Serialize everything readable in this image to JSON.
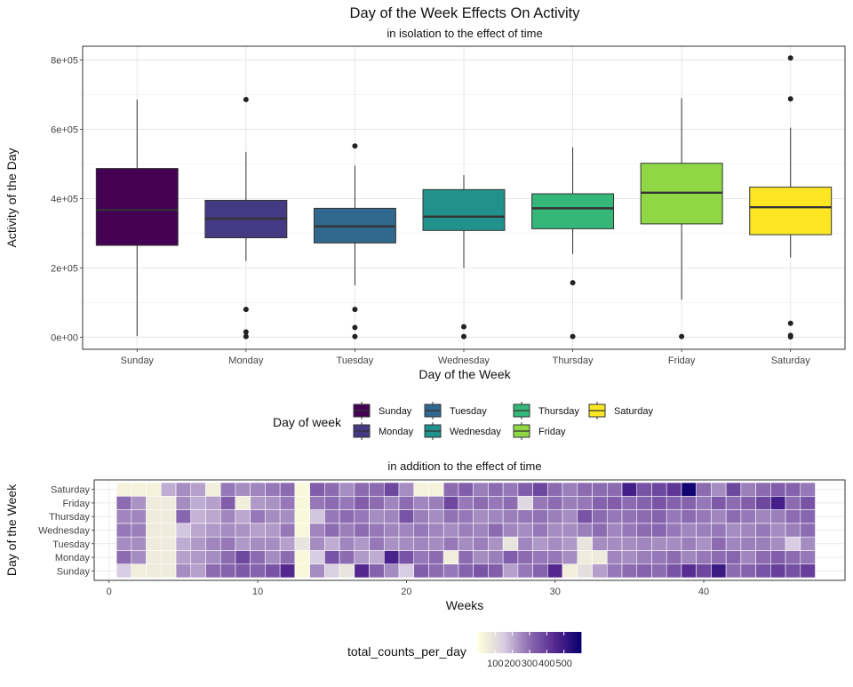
{
  "chart_data": [
    {
      "type": "box",
      "title": "Day of the Week Effects On Activity",
      "subtitle": "in isolation to the effect of time",
      "xlabel": "Day of the Week",
      "ylabel": "Activity of the Day",
      "ylim": [
        -35000,
        840000
      ],
      "yticks": [
        0,
        200000,
        400000,
        600000,
        800000
      ],
      "yticklabels": [
        "0e+00",
        "2e+05",
        "4e+05",
        "6e+05",
        "8e+05"
      ],
      "grid": true,
      "legend": {
        "title": "Day of week",
        "position": "bottom",
        "entries": [
          "Sunday",
          "Monday",
          "Tuesday",
          "Wednesday",
          "Thursday",
          "Friday",
          "Saturday"
        ]
      },
      "colors": [
        "#440154",
        "#443983",
        "#31688e",
        "#21918c",
        "#35b779",
        "#8fd744",
        "#fde725"
      ],
      "categories": [
        "Sunday",
        "Monday",
        "Tuesday",
        "Wednesday",
        "Thursday",
        "Friday",
        "Saturday"
      ],
      "boxes": [
        {
          "min": 3000,
          "q1": 265000,
          "median": 367000,
          "q3": 487000,
          "max": 686000,
          "outliers": []
        },
        {
          "min": 220000,
          "q1": 287000,
          "median": 342000,
          "q3": 395000,
          "max": 535000,
          "outliers": [
            686000,
            80000,
            15000,
            2000
          ]
        },
        {
          "min": 150000,
          "q1": 272000,
          "median": 320000,
          "q3": 372000,
          "max": 495000,
          "outliers": [
            552000,
            80000,
            28000,
            2000
          ]
        },
        {
          "min": 200000,
          "q1": 308000,
          "median": 348000,
          "q3": 426000,
          "max": 468000,
          "outliers": [
            30000,
            2000
          ]
        },
        {
          "min": 240000,
          "q1": 313000,
          "median": 372000,
          "q3": 414000,
          "max": 548000,
          "outliers": [
            157000,
            2000
          ]
        },
        {
          "min": 108000,
          "q1": 327000,
          "median": 417000,
          "q3": 502000,
          "max": 690000,
          "outliers": [
            2000
          ]
        },
        {
          "min": 230000,
          "q1": 296000,
          "median": 375000,
          "q3": 433000,
          "max": 605000,
          "outliers": [
            806000,
            688000,
            40000,
            5000,
            1000
          ]
        }
      ]
    },
    {
      "type": "heatmap",
      "title": "in addition to the effect of time",
      "xlabel": "Weeks",
      "ylabel": "Day of the Week",
      "xlim": [
        -1,
        49.5
      ],
      "xticks": [
        0,
        10,
        20,
        30,
        40
      ],
      "weeks_start": 1,
      "weeks_end": 47,
      "rows": [
        "Sunday",
        "Monday",
        "Tuesday",
        "Wednesday",
        "Thursday",
        "Friday",
        "Saturday"
      ],
      "legend": {
        "title": "total_counts_per_day",
        "position": "bottom",
        "ticks": [
          100,
          200,
          300,
          400,
          500
        ],
        "colors": [
          "#ffffd9",
          "#d8cde2",
          "#8c6bb1",
          "#54278f",
          "#08006f"
        ],
        "range": [
          0,
          600
        ]
      },
      "values": [
        [
          150,
          50,
          60,
          60,
          250,
          220,
          300,
          320,
          340,
          320,
          350,
          450,
          20,
          250,
          140,
          80,
          450,
          320,
          250,
          150,
          330,
          300,
          280,
          320,
          350,
          330,
          220,
          280,
          320,
          450,
          50,
          100,
          220,
          280,
          300,
          320,
          300,
          350,
          440,
          380,
          500,
          300,
          320,
          350,
          400,
          360,
          400
        ],
        [
          300,
          250,
          60,
          60,
          220,
          230,
          250,
          300,
          380,
          300,
          250,
          300,
          20,
          150,
          350,
          300,
          230,
          200,
          470,
          350,
          280,
          300,
          50,
          300,
          250,
          270,
          330,
          300,
          280,
          280,
          250,
          60,
          60,
          260,
          250,
          270,
          280,
          300,
          260,
          280,
          300,
          310,
          260,
          300,
          330,
          300,
          280
        ],
        [
          250,
          250,
          60,
          60,
          200,
          230,
          260,
          280,
          230,
          250,
          250,
          220,
          80,
          250,
          200,
          260,
          230,
          280,
          240,
          250,
          260,
          250,
          280,
          250,
          270,
          240,
          80,
          260,
          230,
          250,
          230,
          80,
          250,
          250,
          250,
          260,
          250,
          250,
          270,
          240,
          300,
          260,
          270,
          270,
          250,
          150,
          250
        ],
        [
          280,
          270,
          60,
          60,
          160,
          210,
          230,
          250,
          240,
          220,
          230,
          280,
          20,
          260,
          300,
          270,
          300,
          280,
          260,
          260,
          280,
          260,
          250,
          270,
          260,
          300,
          260,
          250,
          280,
          250,
          250,
          270,
          300,
          260,
          280,
          300,
          310,
          280,
          260,
          270,
          280,
          250,
          260,
          280,
          250,
          270,
          300
        ],
        [
          260,
          260,
          60,
          60,
          310,
          190,
          210,
          260,
          210,
          280,
          250,
          250,
          20,
          160,
          280,
          300,
          280,
          250,
          260,
          350,
          270,
          250,
          290,
          280,
          250,
          260,
          270,
          280,
          290,
          270,
          250,
          350,
          300,
          280,
          290,
          300,
          320,
          280,
          300,
          280,
          260,
          300,
          280,
          260,
          270,
          300,
          310
        ],
        [
          300,
          240,
          60,
          60,
          250,
          200,
          220,
          330,
          50,
          230,
          240,
          280,
          20,
          280,
          300,
          280,
          330,
          300,
          260,
          300,
          260,
          270,
          380,
          280,
          300,
          280,
          300,
          120,
          280,
          300,
          270,
          280,
          320,
          330,
          300,
          320,
          350,
          320,
          320,
          280,
          340,
          300,
          330,
          380,
          480,
          300,
          350
        ],
        [
          40,
          40,
          40,
          200,
          250,
          220,
          50,
          280,
          250,
          260,
          280,
          300,
          20,
          330,
          300,
          250,
          300,
          300,
          380,
          250,
          40,
          40,
          300,
          330,
          270,
          300,
          280,
          330,
          380,
          300,
          270,
          300,
          300,
          300,
          480,
          350,
          380,
          420,
          580,
          300,
          250,
          380,
          270,
          300,
          330,
          320,
          280
        ]
      ]
    }
  ]
}
